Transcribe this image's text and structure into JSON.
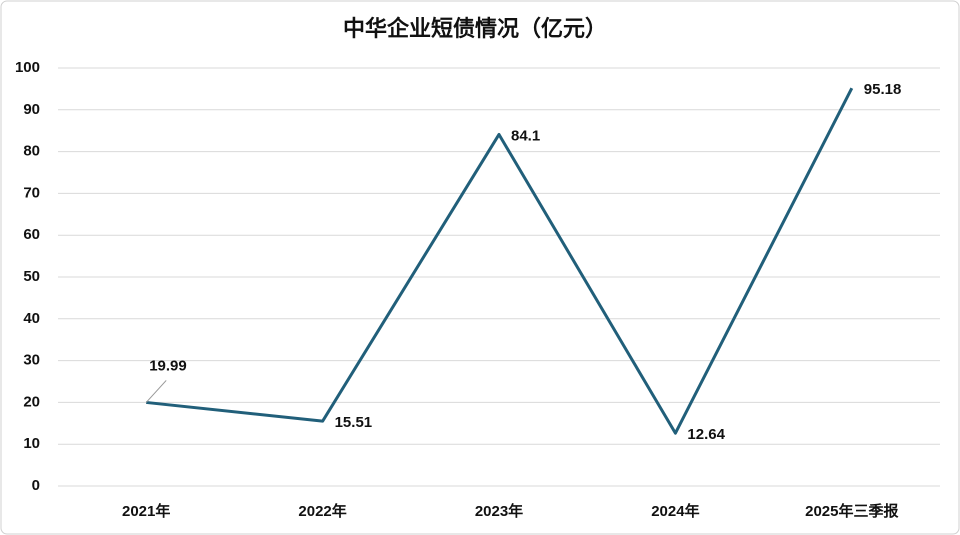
{
  "chart_data": {
    "type": "line",
    "title": "中华企业短债情况（亿元）",
    "categories": [
      "2021年",
      "2022年",
      "2023年",
      "2024年",
      "2025年三季报"
    ],
    "series": [
      {
        "name": "短债",
        "color": "#215f7a",
        "values": [
          19.99,
          15.51,
          84.1,
          12.64,
          95.18
        ]
      }
    ],
    "ylim": [
      0,
      100
    ],
    "yticks": [
      0,
      10,
      20,
      30,
      40,
      50,
      60,
      70,
      80,
      90,
      100
    ],
    "grid": true
  }
}
